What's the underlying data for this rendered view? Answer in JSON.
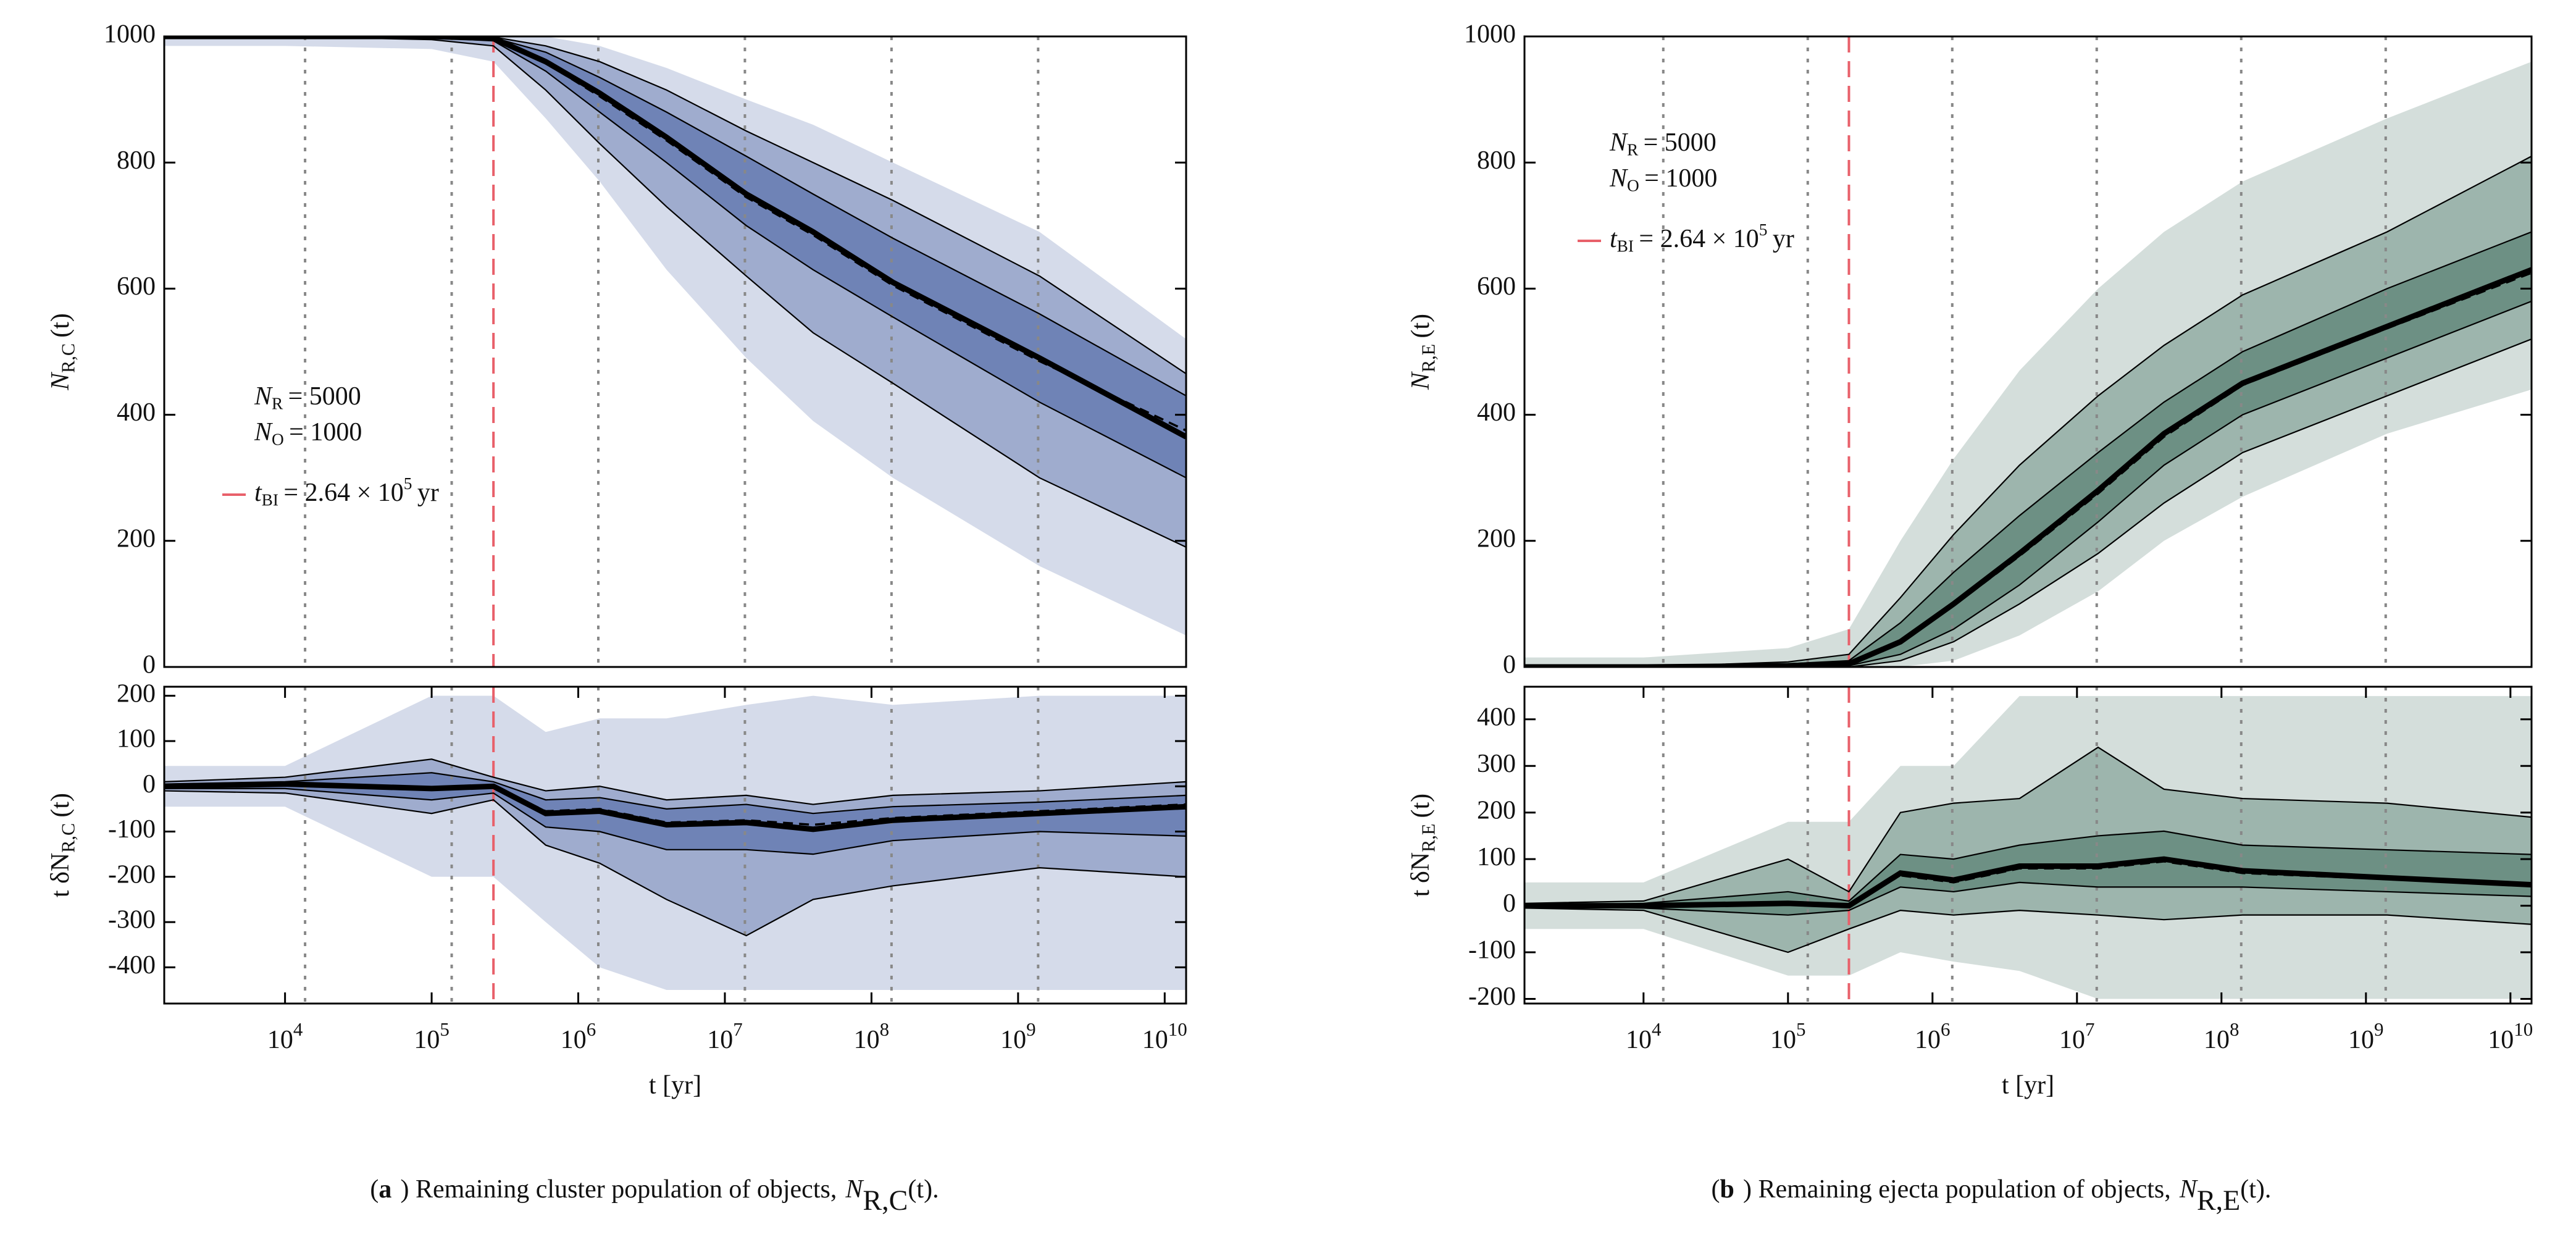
{
  "chart_data": [
    {
      "type": "line",
      "color": "#3f5a9e",
      "xscale": "log",
      "xlim": [
        1500,
        14000000000
      ],
      "ylim": [
        0,
        1000
      ],
      "yticks": [
        0,
        200,
        400,
        600,
        800,
        1000
      ],
      "ylabel": {
        "symbol": "N",
        "sub": "R,C",
        "text": "(t)"
      },
      "vlines": [
        13700,
        137000,
        1370000,
        13700000,
        137000000,
        1370000000
      ],
      "red_line": 264000,
      "annotation": [
        {
          "symbol": "N",
          "sub": "R",
          "text": "= 5000"
        },
        {
          "symbol": "N",
          "sub": "O",
          "text": "= 1000"
        },
        {
          "symbol": "t",
          "sub": "BI",
          "text": "= 2.64 × 10",
          "sup": "5",
          "unit": "yr"
        }
      ],
      "x": [
        1500,
        10000,
        100000,
        264000,
        600000,
        1400000,
        4000000,
        14000000,
        40000000,
        140000000,
        1400000000,
        14000000000
      ],
      "series": [
        {
          "style": "envelope",
          "values": [
            1000,
            1000,
            1000,
            1000,
            1000,
            985,
            950,
            900,
            860,
            800,
            690,
            520
          ]
        },
        {
          "style": "thin",
          "values": [
            1000,
            1000,
            1000,
            999,
            985,
            960,
            915,
            850,
            800,
            740,
            620,
            465
          ]
        },
        {
          "style": "thin",
          "values": [
            1000,
            1000,
            1000,
            998,
            975,
            935,
            880,
            810,
            750,
            680,
            560,
            430
          ]
        },
        {
          "style": "thin",
          "values": [
            1000,
            1000,
            998,
            993,
            945,
            880,
            800,
            700,
            630,
            555,
            420,
            300
          ]
        },
        {
          "style": "thin",
          "values": [
            1000,
            1000,
            995,
            985,
            915,
            830,
            730,
            620,
            530,
            450,
            300,
            190
          ]
        },
        {
          "style": "envelope",
          "values": [
            985,
            985,
            980,
            960,
            870,
            770,
            630,
            490,
            390,
            300,
            160,
            50
          ]
        },
        {
          "style": "bold",
          "values": [
            1000,
            1000,
            1000,
            997,
            960,
            910,
            840,
            750,
            690,
            610,
            490,
            365
          ]
        },
        {
          "style": "dashed",
          "values": [
            1000,
            1000,
            1000,
            997,
            958,
            905,
            835,
            745,
            685,
            605,
            485,
            375
          ]
        }
      ]
    },
    {
      "type": "line",
      "color": "#3f5a9e",
      "xscale": "log",
      "xlim": [
        1500,
        14000000000
      ],
      "ylim": [
        -480,
        220
      ],
      "yticks": [
        -400,
        -300,
        -200,
        -100,
        0,
        100,
        200
      ],
      "xticks": [
        {
          "value": 10000,
          "label": "10",
          "exponent": "4"
        },
        {
          "value": 100000,
          "label": "10",
          "exponent": "5"
        },
        {
          "value": 1000000,
          "label": "10",
          "exponent": "6"
        },
        {
          "value": 10000000,
          "label": "10",
          "exponent": "7"
        },
        {
          "value": 100000000,
          "label": "10",
          "exponent": "8"
        },
        {
          "value": 1000000000,
          "label": "10",
          "exponent": "9"
        },
        {
          "value": 10000000000,
          "label": "10",
          "exponent": "10"
        }
      ],
      "xlabel": "t [yr]",
      "ylabel": {
        "prefix": "t δN",
        "sub": "R,C",
        "text": "(t)"
      },
      "caption": {
        "open": "(",
        "tag": "a",
        "text": ") Remaining cluster population of objects,",
        "symbol": "N",
        "sub": "R,C",
        "tail": "(t)."
      },
      "vlines": [
        13700,
        137000,
        1370000,
        13700000,
        137000000,
        1370000000
      ],
      "red_line": 264000,
      "x": [
        1500,
        10000,
        100000,
        264000,
        600000,
        1400000,
        4000000,
        14000000,
        40000000,
        140000000,
        1400000000,
        14000000000
      ],
      "series": [
        {
          "style": "envelope",
          "values": [
            45,
            45,
            200,
            200,
            120,
            150,
            150,
            180,
            200,
            180,
            200,
            200
          ]
        },
        {
          "style": "thin",
          "values": [
            10,
            20,
            60,
            20,
            -10,
            0,
            -30,
            -20,
            -40,
            -20,
            -10,
            10
          ]
        },
        {
          "style": "thin",
          "values": [
            5,
            10,
            30,
            10,
            -30,
            -25,
            -50,
            -40,
            -60,
            -45,
            -35,
            -20
          ]
        },
        {
          "style": "thin",
          "values": [
            -5,
            -5,
            -30,
            -15,
            -90,
            -100,
            -140,
            -140,
            -150,
            -120,
            -100,
            -110
          ]
        },
        {
          "style": "thin",
          "values": [
            -10,
            -15,
            -60,
            -30,
            -130,
            -170,
            -250,
            -330,
            -250,
            -220,
            -180,
            -200
          ]
        },
        {
          "style": "envelope",
          "values": [
            -45,
            -45,
            -200,
            -200,
            -300,
            -400,
            -450,
            -450,
            -450,
            -450,
            -450,
            -450
          ]
        },
        {
          "style": "bold",
          "values": [
            0,
            5,
            -5,
            0,
            -60,
            -55,
            -85,
            -80,
            -95,
            -75,
            -60,
            -45
          ]
        },
        {
          "style": "dashed",
          "values": [
            0,
            5,
            -5,
            0,
            -55,
            -50,
            -80,
            -75,
            -85,
            -70,
            -55,
            -40
          ]
        }
      ]
    },
    {
      "type": "line",
      "color": "#3d6b5c",
      "xscale": "log",
      "xlim": [
        1500,
        14000000000
      ],
      "ylim": [
        0,
        1000
      ],
      "yticks": [
        0,
        200,
        400,
        600,
        800,
        1000
      ],
      "ylabel": {
        "symbol": "N",
        "sub": "R,E",
        "text": "(t)"
      },
      "vlines": [
        13700,
        137000,
        1370000,
        13700000,
        137000000,
        1370000000
      ],
      "red_line": 264000,
      "annotation": [
        {
          "symbol": "N",
          "sub": "R",
          "text": "= 5000"
        },
        {
          "symbol": "N",
          "sub": "O",
          "text": "= 1000"
        },
        {
          "symbol": "t",
          "sub": "BI",
          "text": "= 2.64 × 10",
          "sup": "5",
          "unit": "yr"
        }
      ],
      "x": [
        1500,
        10000,
        100000,
        264000,
        600000,
        1400000,
        4000000,
        14000000,
        40000000,
        140000000,
        1400000000,
        14000000000
      ],
      "series": [
        {
          "style": "envelope",
          "values": [
            15,
            15,
            30,
            60,
            200,
            330,
            470,
            600,
            690,
            770,
            870,
            960
          ]
        },
        {
          "style": "thin",
          "values": [
            0,
            0,
            8,
            20,
            110,
            210,
            320,
            430,
            510,
            590,
            690,
            810
          ]
        },
        {
          "style": "thin",
          "values": [
            0,
            0,
            5,
            10,
            70,
            150,
            240,
            340,
            420,
            500,
            600,
            690
          ]
        },
        {
          "style": "thin",
          "values": [
            0,
            0,
            0,
            2,
            20,
            60,
            130,
            230,
            320,
            400,
            490,
            580
          ]
        },
        {
          "style": "thin",
          "values": [
            0,
            0,
            0,
            0,
            10,
            40,
            100,
            180,
            260,
            340,
            430,
            520
          ]
        },
        {
          "style": "envelope",
          "values": [
            0,
            0,
            0,
            0,
            0,
            10,
            50,
            120,
            200,
            270,
            370,
            440
          ]
        },
        {
          "style": "bold",
          "values": [
            0,
            0,
            2,
            5,
            40,
            100,
            180,
            280,
            370,
            450,
            540,
            630
          ]
        },
        {
          "style": "dashed",
          "values": [
            0,
            0,
            2,
            5,
            38,
            97,
            176,
            275,
            365,
            447,
            537,
            625
          ]
        }
      ]
    },
    {
      "type": "line",
      "color": "#3d6b5c",
      "xscale": "log",
      "xlim": [
        1500,
        14000000000
      ],
      "ylim": [
        -210,
        470
      ],
      "yticks": [
        -200,
        -100,
        0,
        100,
        200,
        300,
        400
      ],
      "xticks": [
        {
          "value": 10000,
          "label": "10",
          "exponent": "4"
        },
        {
          "value": 100000,
          "label": "10",
          "exponent": "5"
        },
        {
          "value": 1000000,
          "label": "10",
          "exponent": "6"
        },
        {
          "value": 10000000,
          "label": "10",
          "exponent": "7"
        },
        {
          "value": 100000000,
          "label": "10",
          "exponent": "8"
        },
        {
          "value": 1000000000,
          "label": "10",
          "exponent": "9"
        },
        {
          "value": 10000000000,
          "label": "10",
          "exponent": "10"
        }
      ],
      "xlabel": "t [yr]",
      "ylabel": {
        "prefix": "t δN",
        "sub": "R,E",
        "text": "(t)"
      },
      "caption": {
        "open": "(",
        "tag": "b",
        "text": ") Remaining ejecta population of objects,",
        "symbol": "N",
        "sub": "R,E",
        "tail": "(t)."
      },
      "vlines": [
        13700,
        137000,
        1370000,
        13700000,
        137000000,
        1370000000
      ],
      "red_line": 264000,
      "x": [
        1500,
        10000,
        100000,
        264000,
        600000,
        1400000,
        4000000,
        14000000,
        40000000,
        140000000,
        1400000000,
        14000000000
      ],
      "series": [
        {
          "style": "envelope",
          "values": [
            50,
            50,
            180,
            180,
            300,
            300,
            450,
            450,
            450,
            450,
            450,
            450
          ]
        },
        {
          "style": "thin",
          "values": [
            5,
            10,
            100,
            30,
            200,
            220,
            230,
            340,
            250,
            230,
            220,
            190
          ]
        },
        {
          "style": "thin",
          "values": [
            0,
            5,
            30,
            10,
            110,
            100,
            130,
            150,
            160,
            130,
            120,
            110
          ]
        },
        {
          "style": "thin",
          "values": [
            0,
            -5,
            -20,
            -10,
            40,
            30,
            50,
            40,
            40,
            40,
            30,
            20
          ]
        },
        {
          "style": "thin",
          "values": [
            -5,
            -10,
            -100,
            -50,
            -10,
            -20,
            -10,
            -20,
            -30,
            -20,
            -20,
            -40
          ]
        },
        {
          "style": "envelope",
          "values": [
            -50,
            -50,
            -150,
            -150,
            -100,
            -120,
            -140,
            -200,
            -200,
            -200,
            -200,
            -200
          ]
        },
        {
          "style": "bold",
          "values": [
            0,
            0,
            5,
            0,
            70,
            55,
            85,
            85,
            100,
            75,
            60,
            45
          ]
        },
        {
          "style": "dashed",
          "values": [
            0,
            0,
            5,
            0,
            65,
            50,
            80,
            80,
            95,
            70,
            57,
            42
          ]
        }
      ]
    }
  ]
}
